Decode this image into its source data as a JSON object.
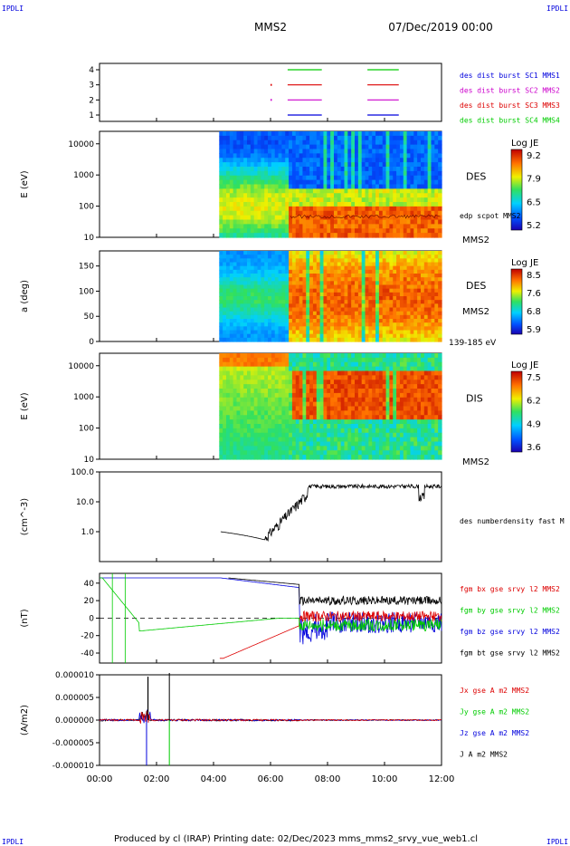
{
  "header": {
    "corner_tl": "IPDLI",
    "corner_tr": "IPDLI",
    "corner_bl": "IPDLI",
    "corner_br": "IPDLI",
    "spacecraft": "MMS2",
    "date": "07/Dec/2019 00:00"
  },
  "footer": {
    "credit": "Produced by cl (IRAP)   Printing date: 02/Dec/2023   mms_mms2_srvy_vue_web1.cl"
  },
  "x_axis": {
    "ticks": [
      "00:00",
      "02:00",
      "04:00",
      "06:00",
      "08:00",
      "10:00",
      "12:00"
    ]
  },
  "colors": {
    "blue": "#0000dd",
    "magenta": "#cc00cc",
    "red": "#dd0000",
    "green": "#00cc00",
    "black": "#000000"
  },
  "chart_data": [
    {
      "type": "line",
      "id": "burst",
      "yticks": [
        "1",
        "2",
        "3",
        "4"
      ],
      "legend": [
        {
          "text": "des dist burst SC1 MMS1",
          "color": "#0000dd"
        },
        {
          "text": "des dist burst SC2 MMS2",
          "color": "#cc00cc"
        },
        {
          "text": "des dist burst SC3 MMS3",
          "color": "#dd0000"
        },
        {
          "text": "des dist burst SC4 MMS4",
          "color": "#00cc00"
        }
      ]
    },
    {
      "type": "heatmap",
      "id": "des_energy",
      "ylabel": "E (eV)",
      "yticks": [
        "10",
        "100",
        "1000",
        "10000"
      ],
      "label": "DES",
      "sublabel": "MMS2",
      "overlay": "edp scpot MMS2",
      "colorbar": {
        "title": "Log JE",
        "ticks": [
          "9.2",
          "7.9",
          "6.5",
          "5.2"
        ]
      }
    },
    {
      "type": "heatmap",
      "id": "des_pitch",
      "ylabel": "a (deg)",
      "yticks": [
        "0",
        "50",
        "100",
        "150"
      ],
      "label": "DES",
      "sublabel": "MMS2",
      "energy_range": "139-185 eV",
      "colorbar": {
        "title": "Log JE",
        "ticks": [
          "8.5",
          "7.6",
          "6.8",
          "5.9"
        ]
      }
    },
    {
      "type": "heatmap",
      "id": "dis_energy",
      "ylabel": "E (eV)",
      "yticks": [
        "10",
        "100",
        "1000",
        "10000"
      ],
      "label": "DIS",
      "sublabel": "MMS2",
      "colorbar": {
        "title": "Log JE",
        "ticks": [
          "7.5",
          "6.2",
          "4.9",
          "3.6"
        ]
      }
    },
    {
      "type": "line",
      "id": "density",
      "ylabel": "(cm^-3)",
      "yticks": [
        "1.0",
        "10.0",
        "100.0"
      ],
      "legend": [
        {
          "text": "des numberdensity fast M",
          "color": "#000000"
        }
      ]
    },
    {
      "type": "line",
      "id": "bfield",
      "ylabel": "(nT)",
      "yticks": [
        "-40",
        "-20",
        "0",
        "20",
        "40"
      ],
      "legend": [
        {
          "text": "fgm bx gse srvy l2 MMS2",
          "color": "#dd0000"
        },
        {
          "text": "fgm by gse srvy l2 MMS2",
          "color": "#00cc00"
        },
        {
          "text": "fgm bz gse srvy l2 MMS2",
          "color": "#0000dd"
        },
        {
          "text": "fgm bt gse srvy l2 MMS2",
          "color": "#000000"
        }
      ]
    },
    {
      "type": "line",
      "id": "current",
      "ylabel": "(A/m2)",
      "yticks": [
        "-0.000010",
        "-0.000005",
        "0.000000",
        "0.000005",
        "0.000010"
      ],
      "legend": [
        {
          "text": "Jx gse A m2 MMS2",
          "color": "#dd0000"
        },
        {
          "text": "Jy gse A m2 MMS2",
          "color": "#00cc00"
        },
        {
          "text": "Jz gse A m2 MMS2",
          "color": "#0000dd"
        },
        {
          "text": "J A m2 MMS2",
          "color": "#000000"
        }
      ]
    }
  ]
}
